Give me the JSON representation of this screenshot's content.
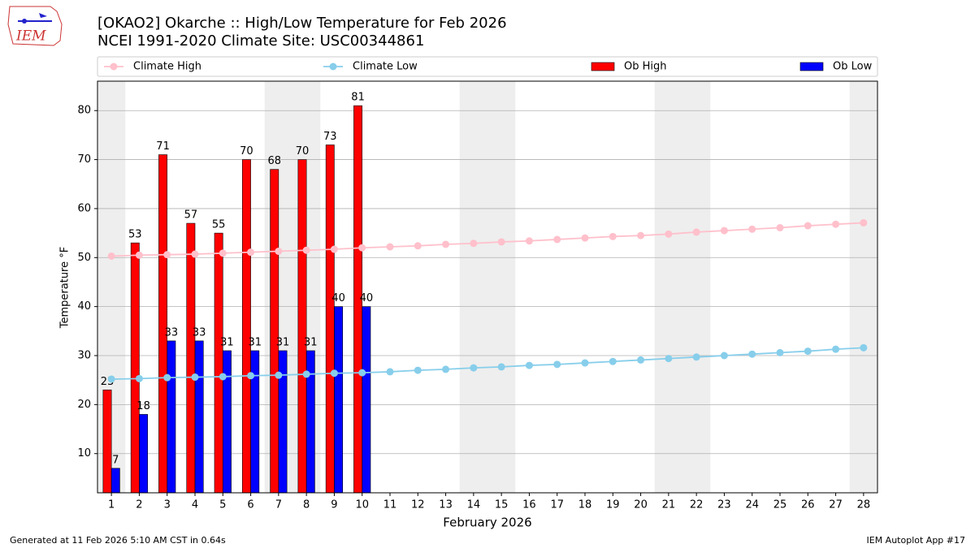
{
  "chart_data": {
    "type": "bar",
    "title": "[OKAO2] Okarche :: High/Low Temperature for Feb 2026",
    "subtitle": "NCEI 1991-2020 Climate Site: USC00344861",
    "x_label": "February 2026",
    "y_label": "Temperature °F",
    "footer_left": "Generated at 11 Feb 2026 5:10 AM CST in 0.64s",
    "footer_right": "IEM Autoplot App #17",
    "logo": "IEM",
    "categories": [
      "1",
      "2",
      "3",
      "4",
      "5",
      "6",
      "7",
      "8",
      "9",
      "10",
      "11",
      "12",
      "13",
      "14",
      "15",
      "16",
      "17",
      "18",
      "19",
      "20",
      "21",
      "22",
      "23",
      "24",
      "25",
      "26",
      "27",
      "28"
    ],
    "ylim": [
      2,
      86
    ],
    "yticks": [
      10,
      20,
      30,
      40,
      50,
      60,
      70,
      80
    ],
    "grid": true,
    "legend": "top",
    "series": [
      {
        "name": "Climate High",
        "kind": "line",
        "color": "#ffc0cb",
        "values": [
          50.3,
          50.5,
          50.6,
          50.7,
          50.9,
          51.1,
          51.3,
          51.5,
          51.7,
          52.0,
          52.2,
          52.4,
          52.7,
          52.9,
          53.2,
          53.4,
          53.7,
          54.0,
          54.3,
          54.5,
          54.8,
          55.2,
          55.5,
          55.8,
          56.1,
          56.5,
          56.8,
          57.1
        ]
      },
      {
        "name": "Climate Low",
        "kind": "line",
        "color": "#87ceeb",
        "values": [
          25.2,
          25.3,
          25.5,
          25.6,
          25.7,
          25.9,
          26.0,
          26.2,
          26.4,
          26.5,
          26.7,
          27.0,
          27.2,
          27.5,
          27.7,
          28.0,
          28.2,
          28.5,
          28.8,
          29.1,
          29.4,
          29.7,
          30.0,
          30.3,
          30.6,
          30.9,
          31.3,
          31.6
        ]
      },
      {
        "name": "Ob High",
        "kind": "bar",
        "color": "#ff0000",
        "values": [
          23,
          53,
          71,
          57,
          55,
          70,
          68,
          70,
          73,
          81,
          null,
          null,
          null,
          null,
          null,
          null,
          null,
          null,
          null,
          null,
          null,
          null,
          null,
          null,
          null,
          null,
          null,
          null
        ]
      },
      {
        "name": "Ob Low",
        "kind": "bar",
        "color": "#0000ff",
        "values": [
          7,
          18,
          33,
          33,
          31,
          31,
          31,
          31,
          40,
          40,
          null,
          null,
          null,
          null,
          null,
          null,
          null,
          null,
          null,
          null,
          null,
          null,
          null,
          null,
          null,
          null,
          null,
          null
        ]
      }
    ]
  }
}
